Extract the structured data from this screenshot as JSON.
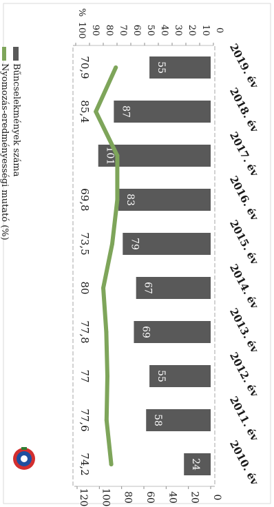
{
  "chart_data": {
    "type": "bar+line",
    "orientation": "rotated-90-clockwise",
    "categories": [
      "2010. év",
      "2011. év",
      "2012. év",
      "2013. év",
      "2014. év",
      "2015. év",
      "2016. év",
      "2017. év",
      "2018. év",
      "2019. év"
    ],
    "series": [
      {
        "name": "Bűncselekmények száma",
        "type": "bar",
        "axis": "left",
        "values": [
          24,
          58,
          55,
          69,
          67,
          79,
          83,
          101,
          87,
          55
        ],
        "color": "#595959"
      },
      {
        "name": "Nyomozás-eredményességi mutató (%)",
        "type": "line",
        "axis": "right",
        "values": [
          74.2,
          77.6,
          77,
          77.8,
          80,
          73.5,
          69.8,
          69.8,
          85.4,
          70.9
        ],
        "labels": [
          "74,2",
          "77,6",
          "77",
          "77,8",
          "80",
          "73,5",
          "69,8",
          "",
          "85,4",
          "70,9"
        ],
        "color": "#7ea55a"
      }
    ],
    "left_axis": {
      "ylim": [
        0,
        120
      ],
      "ticks": [
        "0",
        "20",
        "40",
        "60",
        "80",
        "100",
        "120"
      ],
      "tick_values": [
        0,
        20,
        40,
        60,
        80,
        100,
        120
      ]
    },
    "right_axis": {
      "ylim": [
        0,
        100
      ],
      "ticks": [
        "0",
        "10",
        "20",
        "30",
        "40",
        "50",
        "60",
        "70",
        "80",
        "90",
        "100"
      ],
      "tick_values": [
        0,
        10,
        20,
        30,
        40,
        50,
        60,
        70,
        80,
        90,
        100
      ],
      "unit": "%"
    },
    "legend_position": "top",
    "grid": false
  }
}
